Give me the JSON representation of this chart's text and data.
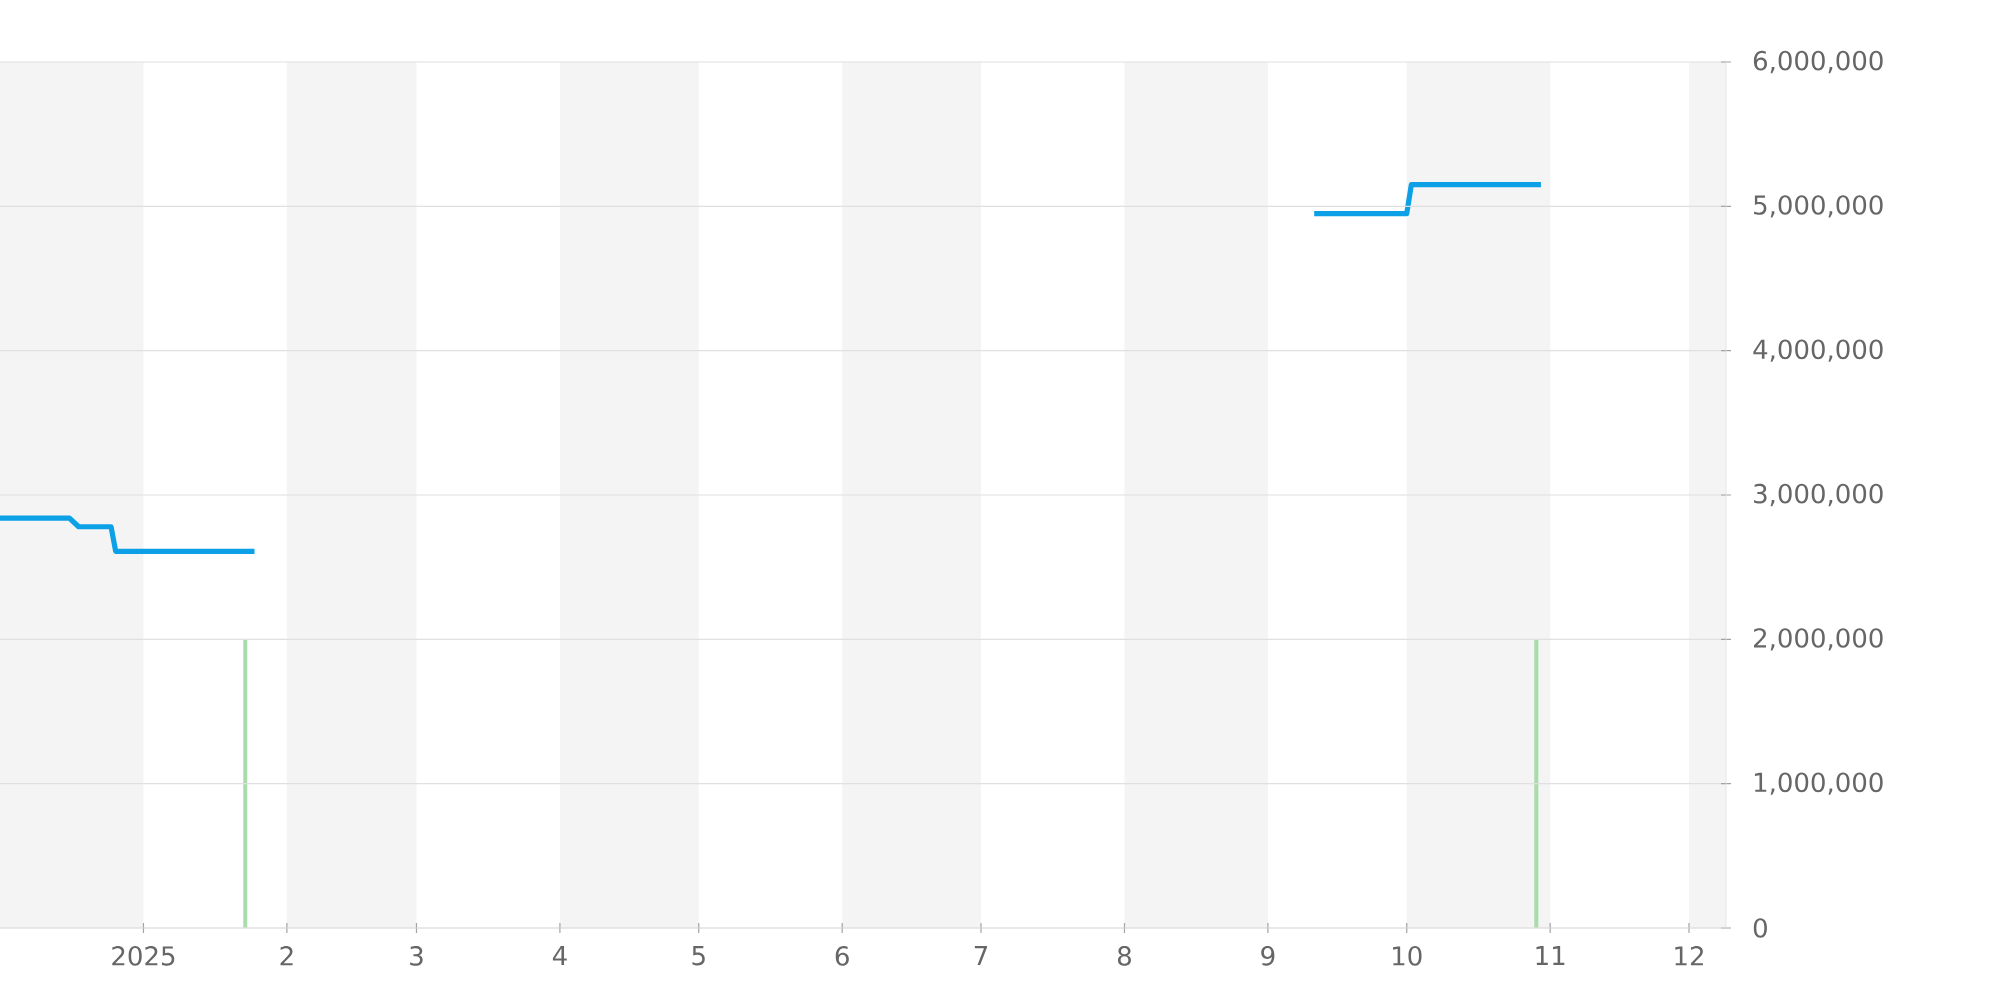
{
  "chart_data": {
    "type": "line",
    "xlim": [
      "2024-12-01",
      "2025-12-09"
    ],
    "xticks": [
      {
        "value": "2025-01-01",
        "label": "2025"
      },
      {
        "value": "2025-02-01",
        "label": "2"
      },
      {
        "value": "2025-03-01",
        "label": "3"
      },
      {
        "value": "2025-04-01",
        "label": "4"
      },
      {
        "value": "2025-05-01",
        "label": "5"
      },
      {
        "value": "2025-06-01",
        "label": "6"
      },
      {
        "value": "2025-07-01",
        "label": "7"
      },
      {
        "value": "2025-08-01",
        "label": "8"
      },
      {
        "value": "2025-09-01",
        "label": "9"
      },
      {
        "value": "2025-10-01",
        "label": "10"
      },
      {
        "value": "2025-11-01",
        "label": "11"
      },
      {
        "value": "2025-12-01",
        "label": "12"
      }
    ],
    "ylim": [
      0,
      6000000
    ],
    "yticks": [
      {
        "value": 0,
        "label": "0"
      },
      {
        "value": 1000000,
        "label": "1,000,000"
      },
      {
        "value": 2000000,
        "label": "2,000,000"
      },
      {
        "value": 3000000,
        "label": "3,000,000"
      },
      {
        "value": 4000000,
        "label": "4,000,000"
      },
      {
        "value": 5000000,
        "label": "5,000,000"
      },
      {
        "value": 6000000,
        "label": "6,000,000"
      }
    ],
    "grid": "y",
    "series": [
      {
        "type": "bar",
        "color": "#a8dcaa",
        "x": [
          "2025-01-23",
          "2025-10-29"
        ],
        "values": [
          2000000,
          2000000
        ]
      },
      {
        "color": "#0ca0e6",
        "x": [
          "2024-12-01",
          "2024-12-16",
          "2024-12-18",
          "2024-12-25",
          "2024-12-26",
          "2025-01-25",
          "2025-06-01",
          "2025-09-11",
          "2025-10-01",
          "2025-10-02",
          "2025-10-30"
        ],
        "values": [
          2840000,
          2840000,
          2780000,
          2780000,
          2610000,
          2610000,
          null,
          4950000,
          4950000,
          5150000,
          5150000
        ]
      }
    ],
    "bands": [
      {
        "axis": "x",
        "from": "2024-12-01",
        "to": "2025-01-01",
        "color": "#f4f4f4"
      },
      {
        "axis": "x",
        "from": "2025-02-01",
        "to": "2025-03-01",
        "color": "#f4f4f4"
      },
      {
        "axis": "x",
        "from": "2025-04-01",
        "to": "2025-05-01",
        "color": "#f4f4f4"
      },
      {
        "axis": "x",
        "from": "2025-06-01",
        "to": "2025-07-01",
        "color": "#f4f4f4"
      },
      {
        "axis": "x",
        "from": "2025-08-01",
        "to": "2025-09-01",
        "color": "#f4f4f4"
      },
      {
        "axis": "x",
        "from": "2025-10-01",
        "to": "2025-11-01",
        "color": "#f4f4f4"
      },
      {
        "axis": "x",
        "from": "2025-12-01",
        "to": "2025-12-09",
        "color": "#f4f4f4"
      }
    ]
  }
}
